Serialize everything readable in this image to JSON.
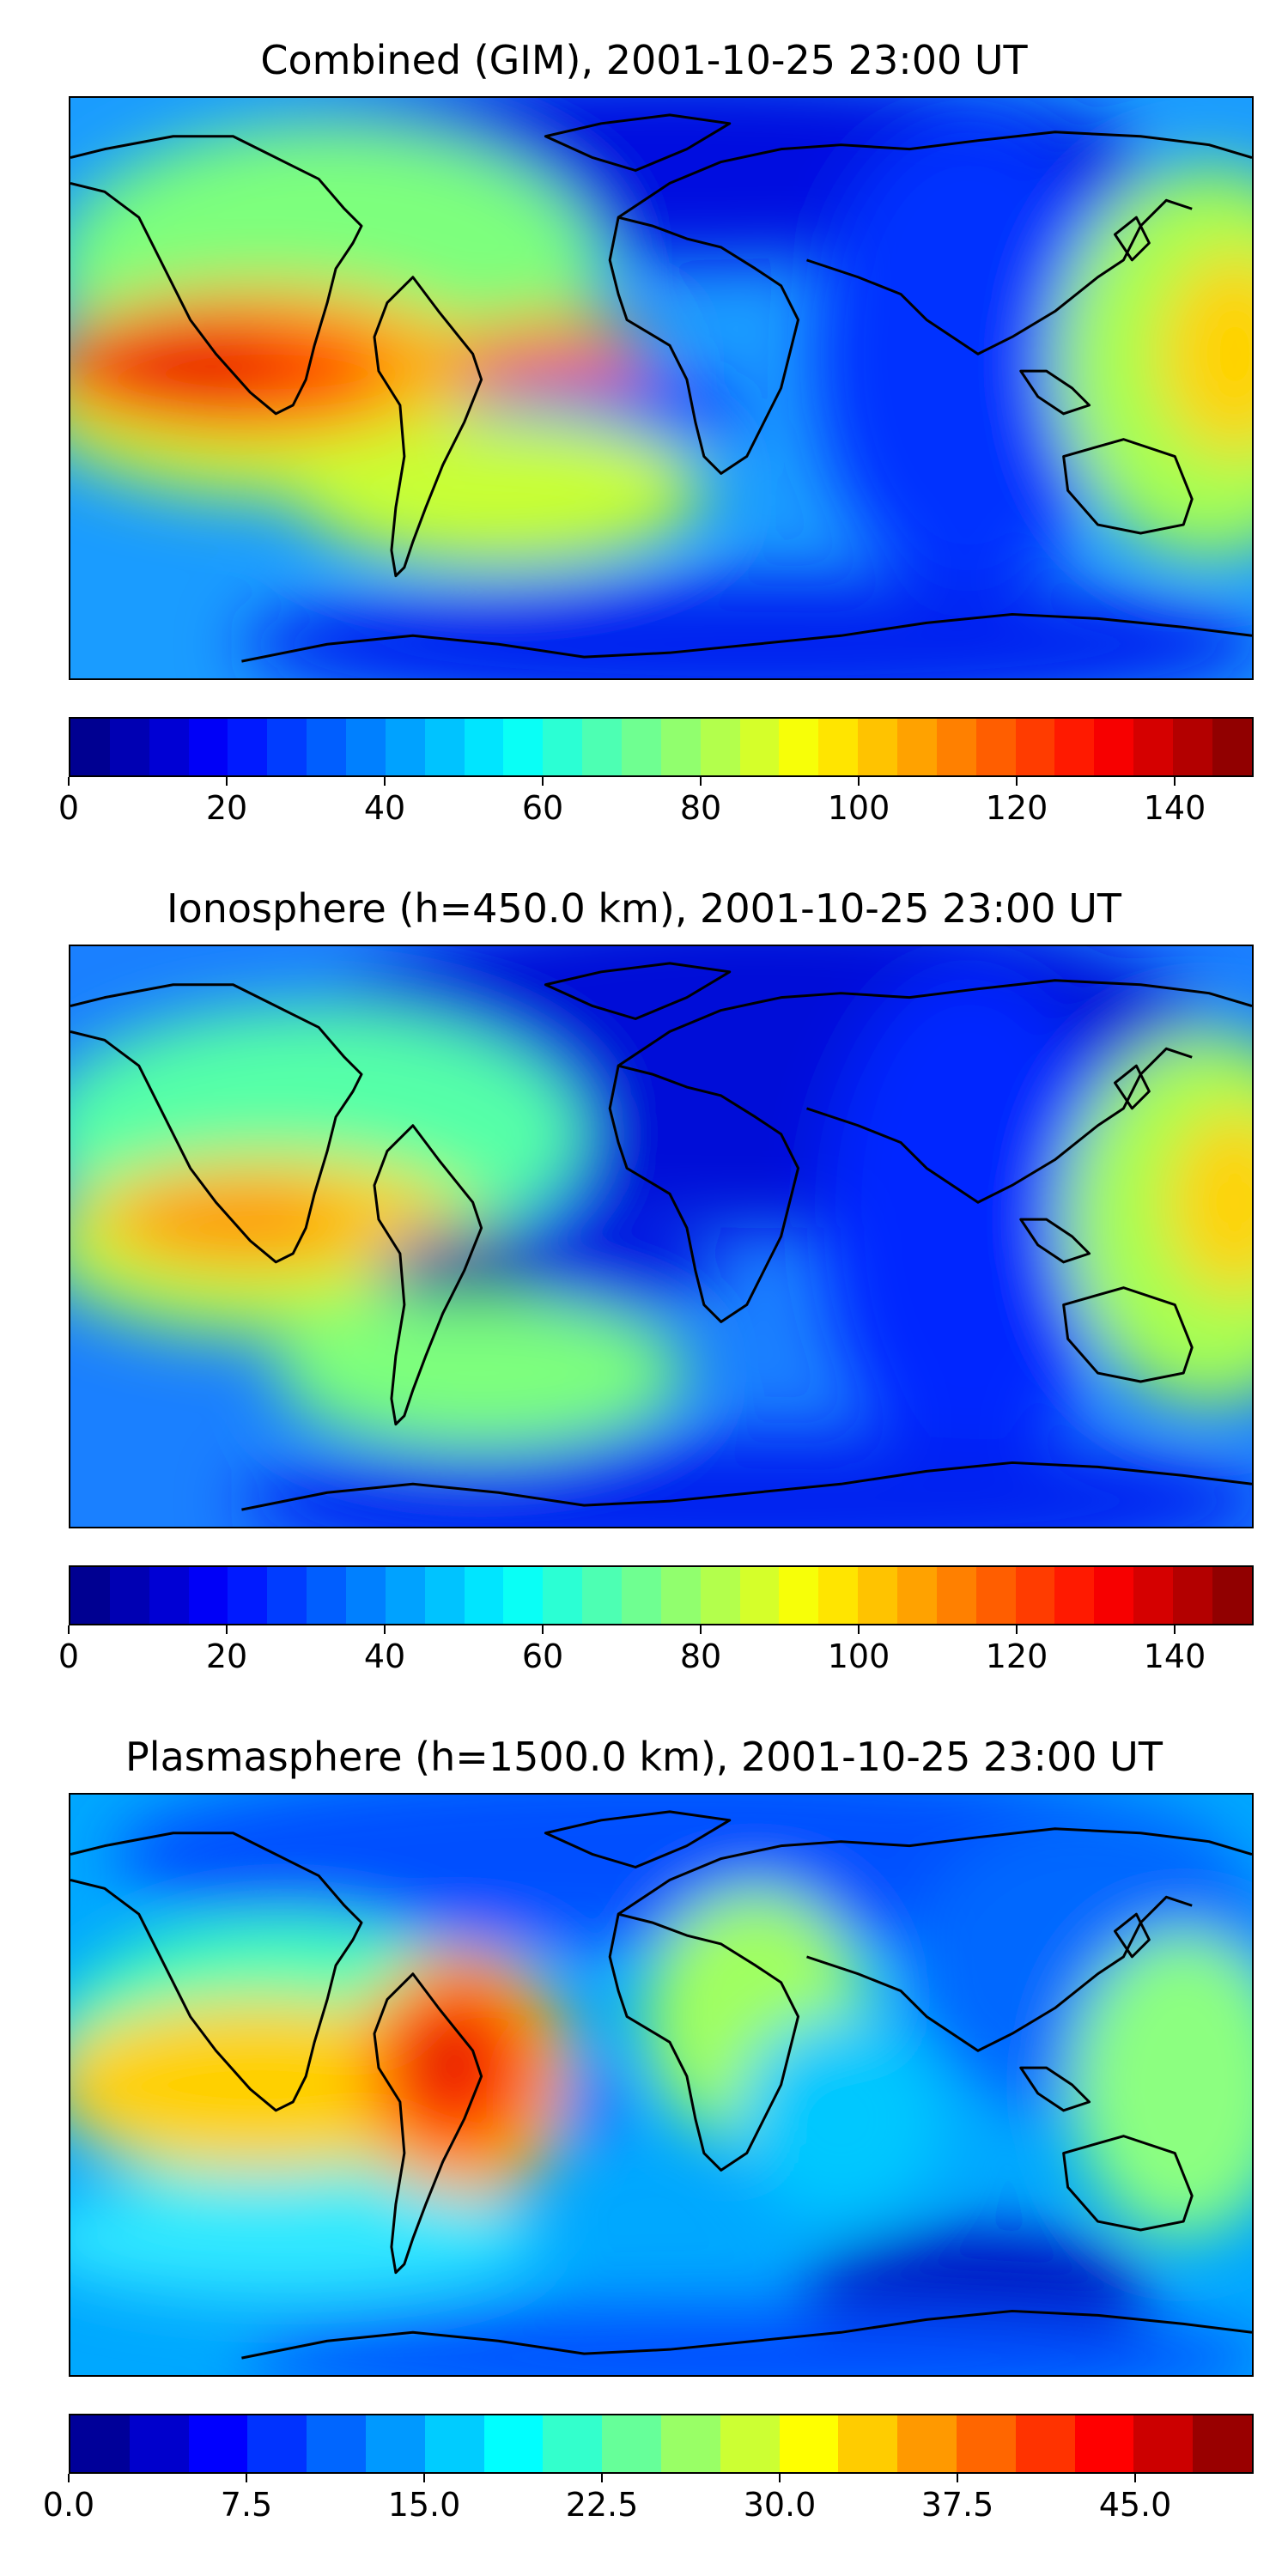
{
  "panels": [
    {
      "title": "Combined (GIM), 2001-10-25 23:00 UT",
      "colorbar": {
        "min": 0,
        "max": 150,
        "levels": 30,
        "ticks": [
          {
            "value": 0,
            "label": "0"
          },
          {
            "value": 20,
            "label": "20"
          },
          {
            "value": 40,
            "label": "40"
          },
          {
            "value": 60,
            "label": "60"
          },
          {
            "value": 80,
            "label": "80"
          },
          {
            "value": 100,
            "label": "100"
          },
          {
            "value": 120,
            "label": "120"
          },
          {
            "value": 140,
            "label": "140"
          }
        ]
      }
    },
    {
      "title": "Ionosphere  (h=450.0 km), 2001-10-25 23:00 UT",
      "colorbar": {
        "min": 0,
        "max": 150,
        "levels": 30,
        "ticks": [
          {
            "value": 0,
            "label": "0"
          },
          {
            "value": 20,
            "label": "20"
          },
          {
            "value": 40,
            "label": "40"
          },
          {
            "value": 60,
            "label": "60"
          },
          {
            "value": 80,
            "label": "80"
          },
          {
            "value": 100,
            "label": "100"
          },
          {
            "value": 120,
            "label": "120"
          },
          {
            "value": 140,
            "label": "140"
          }
        ]
      }
    },
    {
      "title": "Plasmasphere (h=1500.0 km), 2001-10-25 23:00 UT",
      "colorbar": {
        "min": 0,
        "max": 50,
        "levels": 20,
        "ticks": [
          {
            "value": 0,
            "label": "0.0"
          },
          {
            "value": 7.5,
            "label": "7.5"
          },
          {
            "value": 15,
            "label": "15.0"
          },
          {
            "value": 22.5,
            "label": "22.5"
          },
          {
            "value": 30,
            "label": "30.0"
          },
          {
            "value": 37.5,
            "label": "37.5"
          },
          {
            "value": 45,
            "label": "45.0"
          }
        ]
      }
    }
  ],
  "colormap": "jet"
}
